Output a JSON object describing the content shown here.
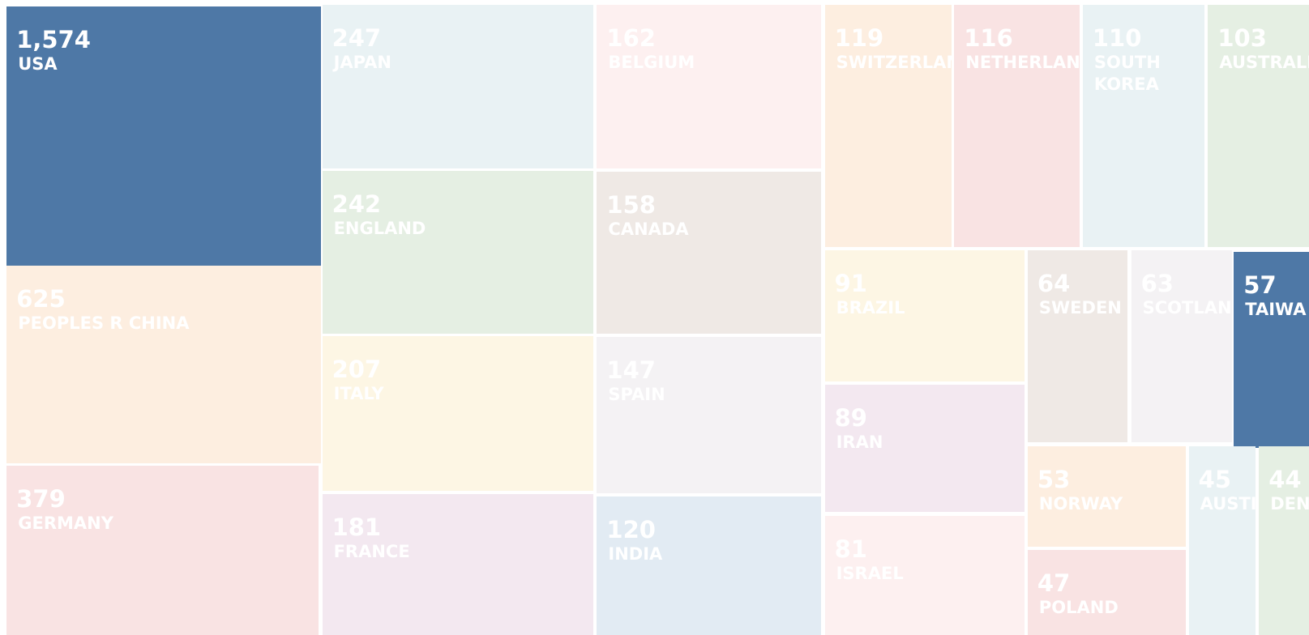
{
  "chart_data": {
    "type": "treemap",
    "categories": [
      "USA",
      "PEOPLES R CHINA",
      "GERMANY",
      "JAPAN",
      "ENGLAND",
      "ITALY",
      "FRANCE",
      "BELGIUM",
      "CANADA",
      "SPAIN",
      "INDIA",
      "SWITZERLAN",
      "NETHERLAN",
      "SOUTH KOREA",
      "AUSTRALI",
      "BRAZIL",
      "IRAN",
      "ISRAEL",
      "SWEDEN",
      "SCOTLAN",
      "TAIWA",
      "NORWAY",
      "POLAND",
      "AUSTI",
      "DEN"
    ],
    "values": [
      1574,
      625,
      379,
      247,
      242,
      207,
      181,
      162,
      158,
      147,
      120,
      119,
      116,
      110,
      103,
      91,
      89,
      81,
      64,
      63,
      57,
      53,
      47,
      45,
      44
    ],
    "value_labels": [
      "1,574",
      "625",
      "379",
      "247",
      "242",
      "207",
      "181",
      "162",
      "158",
      "147",
      "120",
      "119",
      "116",
      "110",
      "103",
      "91",
      "89",
      "81",
      "64",
      "63",
      "57",
      "53",
      "47",
      "45",
      "44"
    ],
    "colors": [
      "#4e78a6",
      "#fdeee0",
      "#f9e3e3",
      "#e9f2f4",
      "#e5efe3",
      "#fdf6e4",
      "#f3e8f0",
      "#fdf0f0",
      "#efe9e5",
      "#f4f2f4",
      "#e2ebf3",
      "#fdeee0",
      "#f9e3e3",
      "#e9f2f4",
      "#e5efe3",
      "#fdf6e4",
      "#f3e8f0",
      "#fdf0f0",
      "#efe9e5",
      "#f4f2f4",
      "#4e78a6",
      "#fdeee0",
      "#f9e3e3",
      "#e9f2f4",
      "#e5efe3"
    ]
  }
}
